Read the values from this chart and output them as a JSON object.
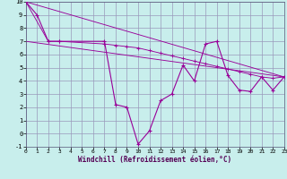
{
  "xlabel": "Windchill (Refroidissement éolien,°C)",
  "bg_color": "#c8eeec",
  "grid_color": "#9999bb",
  "line_color": "#990099",
  "xlim": [
    0,
    23
  ],
  "ylim": [
    -1,
    10
  ],
  "xticks": [
    0,
    1,
    2,
    3,
    4,
    5,
    6,
    7,
    8,
    9,
    10,
    11,
    12,
    13,
    14,
    15,
    16,
    17,
    18,
    19,
    20,
    21,
    22,
    23
  ],
  "yticks": [
    -1,
    0,
    1,
    2,
    3,
    4,
    5,
    6,
    7,
    8,
    9,
    10
  ],
  "series0_x": [
    0,
    1,
    2,
    3,
    7,
    8,
    9,
    10,
    11,
    12,
    13,
    14,
    15,
    16,
    17,
    18,
    19,
    20,
    21,
    22,
    23
  ],
  "series0_y": [
    10,
    9,
    7,
    7,
    7,
    2.2,
    2.0,
    -0.8,
    0.2,
    2.5,
    3.0,
    5.2,
    4.0,
    6.8,
    7.0,
    4.4,
    3.3,
    3.2,
    4.3,
    3.3,
    4.3
  ],
  "series1_x": [
    0,
    23
  ],
  "series1_y": [
    10,
    4.3
  ],
  "series2_x": [
    0,
    23
  ],
  "series2_y": [
    7.0,
    4.3
  ],
  "series3_x": [
    0,
    2,
    3,
    7,
    8,
    9,
    10,
    11,
    12,
    13,
    14,
    15,
    16,
    17,
    18,
    19,
    20,
    21,
    22,
    23
  ],
  "series3_y": [
    10,
    7.0,
    7.0,
    6.8,
    6.7,
    6.6,
    6.5,
    6.3,
    6.1,
    5.9,
    5.7,
    5.5,
    5.3,
    5.1,
    4.9,
    4.7,
    4.5,
    4.3,
    4.2,
    4.3
  ]
}
